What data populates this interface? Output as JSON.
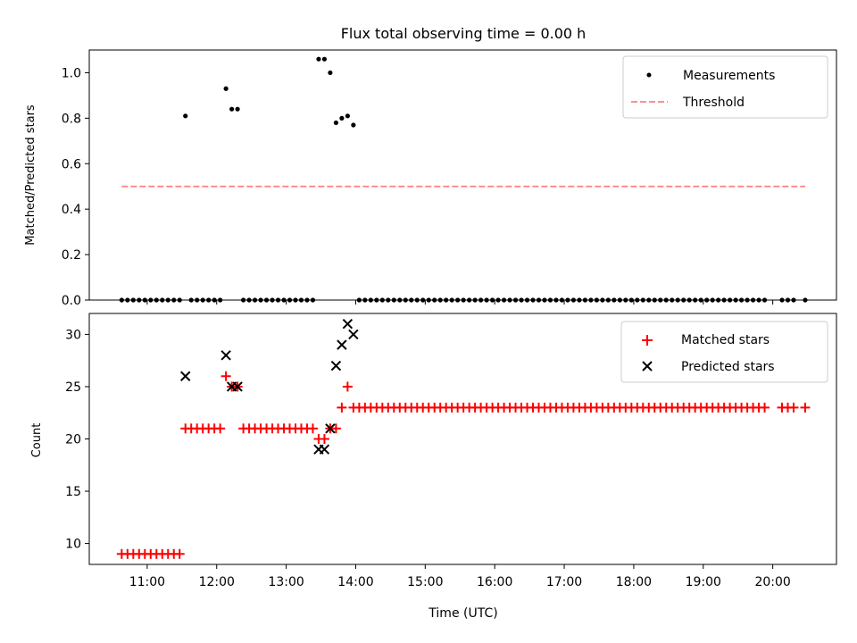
{
  "chart_data": [
    {
      "type": "scatter",
      "title": "Flux total observing time = 0.00 h",
      "ylabel": "Matched/Predicted stars",
      "xlabel": "",
      "xlim": [
        "10:10",
        "20:55"
      ],
      "ylim": [
        0,
        1.1
      ],
      "yticks": [
        0.0,
        0.2,
        0.4,
        0.6,
        0.8,
        1.0
      ],
      "ytick_labels": [
        "0.0",
        "0.2",
        "0.4",
        "0.6",
        "0.8",
        "1.0"
      ],
      "xticks": [
        "11:00",
        "12:00",
        "13:00",
        "14:00",
        "15:00",
        "16:00",
        "17:00",
        "18:00",
        "19:00",
        "20:00"
      ],
      "legend_position": "top-right",
      "colors": {
        "measurements": "#000000",
        "threshold": "#ff7f7f"
      },
      "series": [
        {
          "name": "Measurements",
          "marker": "dot",
          "points": [
            [
              "10:38",
              0
            ],
            [
              "10:43",
              0
            ],
            [
              "10:48",
              0
            ],
            [
              "10:53",
              0
            ],
            [
              "10:58",
              0
            ],
            [
              "11:03",
              0
            ],
            [
              "11:08",
              0
            ],
            [
              "11:13",
              0
            ],
            [
              "11:18",
              0
            ],
            [
              "11:23",
              0
            ],
            [
              "11:28",
              0
            ],
            [
              "11:33",
              0.81
            ],
            [
              "11:38",
              0
            ],
            [
              "11:43",
              0
            ],
            [
              "11:48",
              0
            ],
            [
              "11:53",
              0
            ],
            [
              "11:58",
              0
            ],
            [
              "12:03",
              0
            ],
            [
              "12:08",
              0.93
            ],
            [
              "12:13",
              0.84
            ],
            [
              "12:18",
              0.84
            ],
            [
              "12:23",
              0
            ],
            [
              "12:28",
              0
            ],
            [
              "12:33",
              0
            ],
            [
              "12:38",
              0
            ],
            [
              "12:43",
              0
            ],
            [
              "12:48",
              0
            ],
            [
              "12:53",
              0
            ],
            [
              "12:58",
              0
            ],
            [
              "13:03",
              0
            ],
            [
              "13:08",
              0
            ],
            [
              "13:13",
              0
            ],
            [
              "13:18",
              0
            ],
            [
              "13:23",
              0
            ],
            [
              "13:28",
              1.06
            ],
            [
              "13:33",
              1.06
            ],
            [
              "13:38",
              1.0
            ],
            [
              "13:43",
              0.78
            ],
            [
              "13:48",
              0.8
            ],
            [
              "13:53",
              0.81
            ],
            [
              "13:58",
              0.77
            ],
            [
              "14:03",
              0
            ],
            [
              "14:08",
              0
            ],
            [
              "14:13",
              0
            ],
            [
              "14:18",
              0
            ],
            [
              "14:23",
              0
            ],
            [
              "14:28",
              0
            ],
            [
              "14:33",
              0
            ],
            [
              "14:38",
              0
            ],
            [
              "14:43",
              0
            ],
            [
              "14:48",
              0
            ],
            [
              "14:53",
              0
            ],
            [
              "14:58",
              0
            ],
            [
              "15:03",
              0
            ],
            [
              "15:08",
              0
            ],
            [
              "15:13",
              0
            ],
            [
              "15:18",
              0
            ],
            [
              "15:23",
              0
            ],
            [
              "15:28",
              0
            ],
            [
              "15:33",
              0
            ],
            [
              "15:38",
              0
            ],
            [
              "15:43",
              0
            ],
            [
              "15:48",
              0
            ],
            [
              "15:53",
              0
            ],
            [
              "15:58",
              0
            ],
            [
              "16:03",
              0
            ],
            [
              "16:08",
              0
            ],
            [
              "16:13",
              0
            ],
            [
              "16:18",
              0
            ],
            [
              "16:23",
              0
            ],
            [
              "16:28",
              0
            ],
            [
              "16:33",
              0
            ],
            [
              "16:38",
              0
            ],
            [
              "16:43",
              0
            ],
            [
              "16:48",
              0
            ],
            [
              "16:53",
              0
            ],
            [
              "16:58",
              0
            ],
            [
              "17:03",
              0
            ],
            [
              "17:08",
              0
            ],
            [
              "17:13",
              0
            ],
            [
              "17:18",
              0
            ],
            [
              "17:23",
              0
            ],
            [
              "17:28",
              0
            ],
            [
              "17:33",
              0
            ],
            [
              "17:38",
              0
            ],
            [
              "17:43",
              0
            ],
            [
              "17:48",
              0
            ],
            [
              "17:53",
              0
            ],
            [
              "17:58",
              0
            ],
            [
              "18:03",
              0
            ],
            [
              "18:08",
              0
            ],
            [
              "18:13",
              0
            ],
            [
              "18:18",
              0
            ],
            [
              "18:23",
              0
            ],
            [
              "18:28",
              0
            ],
            [
              "18:33",
              0
            ],
            [
              "18:38",
              0
            ],
            [
              "18:43",
              0
            ],
            [
              "18:48",
              0
            ],
            [
              "18:53",
              0
            ],
            [
              "18:58",
              0
            ],
            [
              "19:03",
              0
            ],
            [
              "19:08",
              0
            ],
            [
              "19:13",
              0
            ],
            [
              "19:18",
              0
            ],
            [
              "19:23",
              0
            ],
            [
              "19:28",
              0
            ],
            [
              "19:33",
              0
            ],
            [
              "19:38",
              0
            ],
            [
              "19:43",
              0
            ],
            [
              "19:48",
              0
            ],
            [
              "19:53",
              0
            ],
            [
              "20:08",
              0
            ],
            [
              "20:13",
              0
            ],
            [
              "20:18",
              0
            ],
            [
              "20:28",
              0
            ]
          ]
        },
        {
          "name": "Threshold",
          "marker": "dashed-line",
          "points": [
            [
              "10:38",
              0.5
            ],
            [
              "20:28",
              0.5
            ]
          ]
        }
      ]
    },
    {
      "type": "scatter",
      "title": "",
      "xlabel": "Time (UTC)",
      "ylabel": "Count",
      "xlim": [
        "10:10",
        "20:55"
      ],
      "ylim": [
        8,
        32
      ],
      "yticks": [
        10,
        15,
        20,
        25,
        30
      ],
      "ytick_labels": [
        "10",
        "15",
        "20",
        "25",
        "30"
      ],
      "xticks": [
        "11:00",
        "12:00",
        "13:00",
        "14:00",
        "15:00",
        "16:00",
        "17:00",
        "18:00",
        "19:00",
        "20:00"
      ],
      "legend_position": "top-right",
      "colors": {
        "matched": "#ff0000",
        "predicted": "#000000"
      },
      "series": [
        {
          "name": "Matched stars",
          "marker": "plus",
          "points": [
            [
              "10:38",
              9
            ],
            [
              "10:43",
              9
            ],
            [
              "10:48",
              9
            ],
            [
              "10:53",
              9
            ],
            [
              "10:58",
              9
            ],
            [
              "11:03",
              9
            ],
            [
              "11:08",
              9
            ],
            [
              "11:13",
              9
            ],
            [
              "11:18",
              9
            ],
            [
              "11:23",
              9
            ],
            [
              "11:28",
              9
            ],
            [
              "11:33",
              21
            ],
            [
              "11:38",
              21
            ],
            [
              "11:43",
              21
            ],
            [
              "11:48",
              21
            ],
            [
              "11:53",
              21
            ],
            [
              "11:58",
              21
            ],
            [
              "12:03",
              21
            ],
            [
              "12:08",
              26
            ],
            [
              "12:13",
              25
            ],
            [
              "12:18",
              25
            ],
            [
              "12:23",
              21
            ],
            [
              "12:28",
              21
            ],
            [
              "12:33",
              21
            ],
            [
              "12:38",
              21
            ],
            [
              "12:43",
              21
            ],
            [
              "12:48",
              21
            ],
            [
              "12:53",
              21
            ],
            [
              "12:58",
              21
            ],
            [
              "13:03",
              21
            ],
            [
              "13:08",
              21
            ],
            [
              "13:13",
              21
            ],
            [
              "13:18",
              21
            ],
            [
              "13:23",
              21
            ],
            [
              "13:28",
              20
            ],
            [
              "13:33",
              20
            ],
            [
              "13:38",
              21
            ],
            [
              "13:43",
              21
            ],
            [
              "13:48",
              23
            ],
            [
              "13:53",
              25
            ],
            [
              "13:58",
              23
            ],
            [
              "14:03",
              23
            ],
            [
              "14:08",
              23
            ],
            [
              "14:13",
              23
            ],
            [
              "14:18",
              23
            ],
            [
              "14:23",
              23
            ],
            [
              "14:28",
              23
            ],
            [
              "14:33",
              23
            ],
            [
              "14:38",
              23
            ],
            [
              "14:43",
              23
            ],
            [
              "14:48",
              23
            ],
            [
              "14:53",
              23
            ],
            [
              "14:58",
              23
            ],
            [
              "15:03",
              23
            ],
            [
              "15:08",
              23
            ],
            [
              "15:13",
              23
            ],
            [
              "15:18",
              23
            ],
            [
              "15:23",
              23
            ],
            [
              "15:28",
              23
            ],
            [
              "15:33",
              23
            ],
            [
              "15:38",
              23
            ],
            [
              "15:43",
              23
            ],
            [
              "15:48",
              23
            ],
            [
              "15:53",
              23
            ],
            [
              "15:58",
              23
            ],
            [
              "16:03",
              23
            ],
            [
              "16:08",
              23
            ],
            [
              "16:13",
              23
            ],
            [
              "16:18",
              23
            ],
            [
              "16:23",
              23
            ],
            [
              "16:28",
              23
            ],
            [
              "16:33",
              23
            ],
            [
              "16:38",
              23
            ],
            [
              "16:43",
              23
            ],
            [
              "16:48",
              23
            ],
            [
              "16:53",
              23
            ],
            [
              "16:58",
              23
            ],
            [
              "17:03",
              23
            ],
            [
              "17:08",
              23
            ],
            [
              "17:13",
              23
            ],
            [
              "17:18",
              23
            ],
            [
              "17:23",
              23
            ],
            [
              "17:28",
              23
            ],
            [
              "17:33",
              23
            ],
            [
              "17:38",
              23
            ],
            [
              "17:43",
              23
            ],
            [
              "17:48",
              23
            ],
            [
              "17:53",
              23
            ],
            [
              "17:58",
              23
            ],
            [
              "18:03",
              23
            ],
            [
              "18:08",
              23
            ],
            [
              "18:13",
              23
            ],
            [
              "18:18",
              23
            ],
            [
              "18:23",
              23
            ],
            [
              "18:28",
              23
            ],
            [
              "18:33",
              23
            ],
            [
              "18:38",
              23
            ],
            [
              "18:43",
              23
            ],
            [
              "18:48",
              23
            ],
            [
              "18:53",
              23
            ],
            [
              "18:58",
              23
            ],
            [
              "19:03",
              23
            ],
            [
              "19:08",
              23
            ],
            [
              "19:13",
              23
            ],
            [
              "19:18",
              23
            ],
            [
              "19:23",
              23
            ],
            [
              "19:28",
              23
            ],
            [
              "19:33",
              23
            ],
            [
              "19:38",
              23
            ],
            [
              "19:43",
              23
            ],
            [
              "19:48",
              23
            ],
            [
              "19:53",
              23
            ],
            [
              "20:08",
              23
            ],
            [
              "20:13",
              23
            ],
            [
              "20:18",
              23
            ],
            [
              "20:28",
              23
            ]
          ]
        },
        {
          "name": "Predicted stars",
          "marker": "x",
          "points": [
            [
              "11:33",
              26
            ],
            [
              "12:08",
              28
            ],
            [
              "12:13",
              25
            ],
            [
              "12:18",
              25
            ],
            [
              "13:28",
              19
            ],
            [
              "13:33",
              19
            ],
            [
              "13:38",
              21
            ],
            [
              "13:43",
              27
            ],
            [
              "13:48",
              29
            ],
            [
              "13:53",
              31
            ],
            [
              "13:58",
              30
            ]
          ]
        }
      ]
    }
  ]
}
